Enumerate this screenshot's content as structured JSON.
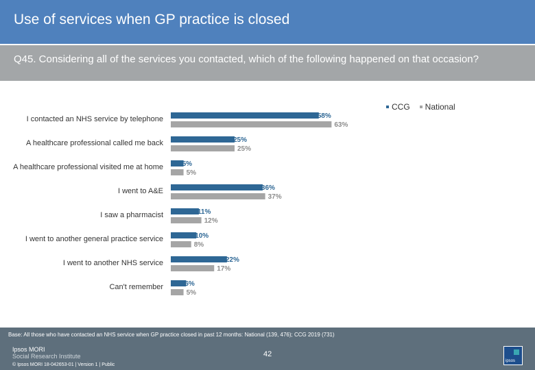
{
  "header": {
    "title": "Use of services when GP practice is closed",
    "question": "Q45. Considering all of the services you contacted, which of the following happened on that occasion?"
  },
  "chart_data": {
    "type": "bar",
    "orientation": "horizontal",
    "categories": [
      "I contacted an NHS service by telephone",
      "A healthcare professional called me back",
      "A healthcare professional visited me at home",
      "I went to A&E",
      "I saw a pharmacist",
      "I went to another general practice service",
      "I went to another NHS service",
      "Can't remember"
    ],
    "series": [
      {
        "name": "CCG",
        "values": [
          58,
          25,
          5,
          36,
          11,
          10,
          22,
          6
        ],
        "labels": [
          "58%",
          "25%",
          "5%",
          "36%",
          "11%",
          "10%",
          "22%",
          "6%"
        ],
        "color": "#2e6795"
      },
      {
        "name": "National",
        "values": [
          63,
          25,
          5,
          37,
          12,
          8,
          17,
          5
        ],
        "labels": [
          "63%",
          "25%",
          "5%",
          "37%",
          "12%",
          "8%",
          "17%",
          "5%"
        ],
        "color": "#a5a5a5"
      }
    ],
    "legend_position": "top-right",
    "grid": false
  },
  "footer": {
    "base": "Base: All those who have contacted an NHS service when GP practice closed in past 12 months: National (139, 476); CCG 2019 (731)",
    "logo_line1": "Ipsos MORI",
    "logo_line2": "Social Research Institute",
    "page_number": "42",
    "copyright": "© Ipsos MORI     18-042653-01 | Version 1 | Public",
    "logo_mark": "ipsos"
  }
}
